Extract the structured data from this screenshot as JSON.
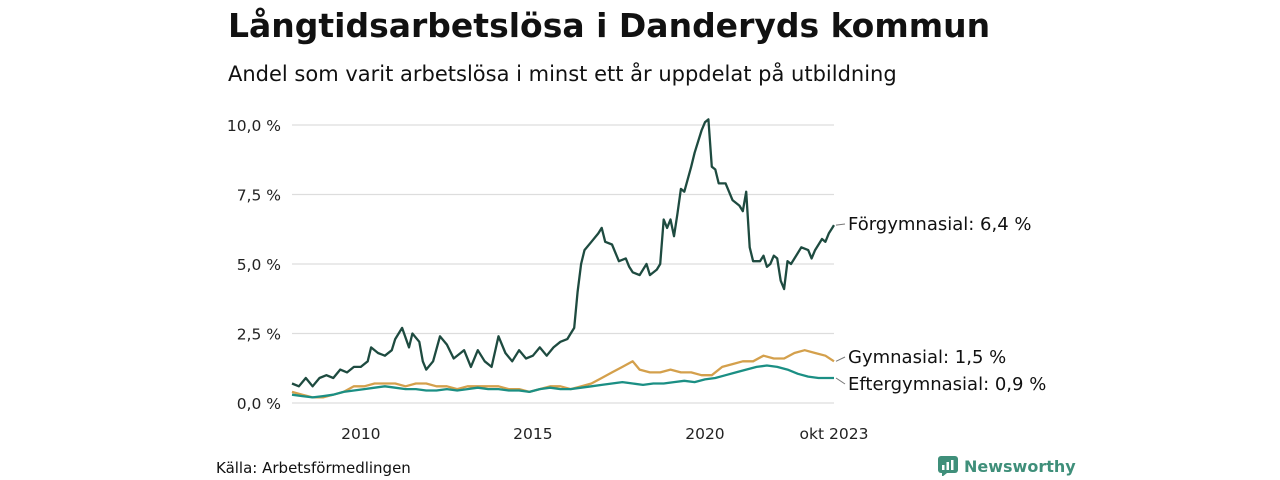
{
  "title": "Långtidsarbetslösa i Danderyds kommun",
  "subtitle": "Andel som varit arbetslösa i minst ett år uppdelat på utbildning",
  "source": "Källa: Arbetsförmedlingen",
  "brand": "Newsworthy",
  "colors": {
    "forgymnasial": "#1e4b40",
    "gymnasial": "#d4a04c",
    "eftergymnasial": "#1b8f84",
    "brand": "#3f8f7a",
    "grid": "#dddddd"
  },
  "chart_data": {
    "type": "line",
    "title": "Långtidsarbetslösa i Danderyds kommun",
    "subtitle": "Andel som varit arbetslösa i minst ett år uppdelat på utbildning",
    "x_range": [
      2008.0,
      2023.75
    ],
    "ylim": [
      0,
      10
    ],
    "y_ticks": [
      0,
      2.5,
      5.0,
      7.5,
      10.0
    ],
    "y_tick_labels": [
      "0,0 %",
      "2,5 %",
      "5,0 %",
      "7,5 %",
      "10,0 %"
    ],
    "x_ticks": [
      2010,
      2015,
      2020,
      2023.75
    ],
    "x_tick_labels": [
      "2010",
      "2015",
      "2020",
      "okt 2023"
    ],
    "series": [
      {
        "name": "Förgymnasial",
        "end_label": "Förgymnasial: 6,4 %",
        "color": "#1e4b40",
        "points": [
          [
            2008.0,
            0.7
          ],
          [
            2008.2,
            0.6
          ],
          [
            2008.4,
            0.9
          ],
          [
            2008.6,
            0.6
          ],
          [
            2008.8,
            0.9
          ],
          [
            2009.0,
            1.0
          ],
          [
            2009.2,
            0.9
          ],
          [
            2009.4,
            1.2
          ],
          [
            2009.6,
            1.1
          ],
          [
            2009.8,
            1.3
          ],
          [
            2010.0,
            1.3
          ],
          [
            2010.2,
            1.5
          ],
          [
            2010.3,
            2.0
          ],
          [
            2010.5,
            1.8
          ],
          [
            2010.7,
            1.7
          ],
          [
            2010.9,
            1.9
          ],
          [
            2011.0,
            2.3
          ],
          [
            2011.2,
            2.7
          ],
          [
            2011.4,
            2.0
          ],
          [
            2011.5,
            2.5
          ],
          [
            2011.7,
            2.2
          ],
          [
            2011.8,
            1.5
          ],
          [
            2011.9,
            1.2
          ],
          [
            2012.1,
            1.5
          ],
          [
            2012.3,
            2.4
          ],
          [
            2012.5,
            2.1
          ],
          [
            2012.7,
            1.6
          ],
          [
            2012.9,
            1.8
          ],
          [
            2013.0,
            1.9
          ],
          [
            2013.2,
            1.3
          ],
          [
            2013.4,
            1.9
          ],
          [
            2013.6,
            1.5
          ],
          [
            2013.8,
            1.3
          ],
          [
            2014.0,
            2.4
          ],
          [
            2014.2,
            1.8
          ],
          [
            2014.4,
            1.5
          ],
          [
            2014.6,
            1.9
          ],
          [
            2014.8,
            1.6
          ],
          [
            2015.0,
            1.7
          ],
          [
            2015.2,
            2.0
          ],
          [
            2015.4,
            1.7
          ],
          [
            2015.6,
            2.0
          ],
          [
            2015.8,
            2.2
          ],
          [
            2016.0,
            2.3
          ],
          [
            2016.1,
            2.5
          ],
          [
            2016.2,
            2.7
          ],
          [
            2016.3,
            4.0
          ],
          [
            2016.4,
            5.0
          ],
          [
            2016.5,
            5.5
          ],
          [
            2016.7,
            5.8
          ],
          [
            2016.9,
            6.1
          ],
          [
            2017.0,
            6.3
          ],
          [
            2017.1,
            5.8
          ],
          [
            2017.3,
            5.7
          ],
          [
            2017.5,
            5.1
          ],
          [
            2017.7,
            5.2
          ],
          [
            2017.8,
            4.9
          ],
          [
            2017.9,
            4.7
          ],
          [
            2018.1,
            4.6
          ],
          [
            2018.3,
            5.0
          ],
          [
            2018.4,
            4.6
          ],
          [
            2018.6,
            4.8
          ],
          [
            2018.7,
            5.0
          ],
          [
            2018.8,
            6.6
          ],
          [
            2018.9,
            6.3
          ],
          [
            2019.0,
            6.6
          ],
          [
            2019.1,
            6.0
          ],
          [
            2019.2,
            6.8
          ],
          [
            2019.3,
            7.7
          ],
          [
            2019.4,
            7.6
          ],
          [
            2019.6,
            8.5
          ],
          [
            2019.7,
            9.0
          ],
          [
            2019.9,
            9.8
          ],
          [
            2020.0,
            10.1
          ],
          [
            2020.1,
            10.2
          ],
          [
            2020.2,
            8.5
          ],
          [
            2020.3,
            8.4
          ],
          [
            2020.4,
            7.9
          ],
          [
            2020.6,
            7.9
          ],
          [
            2020.8,
            7.3
          ],
          [
            2021.0,
            7.1
          ],
          [
            2021.1,
            6.9
          ],
          [
            2021.2,
            7.6
          ],
          [
            2021.3,
            5.6
          ],
          [
            2021.4,
            5.1
          ],
          [
            2021.6,
            5.1
          ],
          [
            2021.7,
            5.3
          ],
          [
            2021.8,
            4.9
          ],
          [
            2021.9,
            5.0
          ],
          [
            2022.0,
            5.3
          ],
          [
            2022.1,
            5.2
          ],
          [
            2022.2,
            4.4
          ],
          [
            2022.3,
            4.1
          ],
          [
            2022.4,
            5.1
          ],
          [
            2022.5,
            5.0
          ],
          [
            2022.7,
            5.4
          ],
          [
            2022.8,
            5.6
          ],
          [
            2023.0,
            5.5
          ],
          [
            2023.1,
            5.2
          ],
          [
            2023.2,
            5.5
          ],
          [
            2023.4,
            5.9
          ],
          [
            2023.5,
            5.8
          ],
          [
            2023.6,
            6.1
          ],
          [
            2023.7,
            6.3
          ],
          [
            2023.75,
            6.4
          ]
        ]
      },
      {
        "name": "Gymnasial",
        "end_label": "Gymnasial: 1,5 %",
        "color": "#d4a04c",
        "points": [
          [
            2008.0,
            0.4
          ],
          [
            2008.3,
            0.3
          ],
          [
            2008.6,
            0.2
          ],
          [
            2008.9,
            0.2
          ],
          [
            2009.2,
            0.3
          ],
          [
            2009.5,
            0.4
          ],
          [
            2009.8,
            0.6
          ],
          [
            2010.1,
            0.6
          ],
          [
            2010.4,
            0.7
          ],
          [
            2010.7,
            0.7
          ],
          [
            2011.0,
            0.7
          ],
          [
            2011.3,
            0.6
          ],
          [
            2011.6,
            0.7
          ],
          [
            2011.9,
            0.7
          ],
          [
            2012.2,
            0.6
          ],
          [
            2012.5,
            0.6
          ],
          [
            2012.8,
            0.5
          ],
          [
            2013.1,
            0.6
          ],
          [
            2013.4,
            0.6
          ],
          [
            2013.7,
            0.6
          ],
          [
            2014.0,
            0.6
          ],
          [
            2014.3,
            0.5
          ],
          [
            2014.6,
            0.5
          ],
          [
            2014.9,
            0.4
          ],
          [
            2015.2,
            0.5
          ],
          [
            2015.5,
            0.6
          ],
          [
            2015.8,
            0.6
          ],
          [
            2016.1,
            0.5
          ],
          [
            2016.4,
            0.6
          ],
          [
            2016.7,
            0.7
          ],
          [
            2017.0,
            0.9
          ],
          [
            2017.3,
            1.1
          ],
          [
            2017.6,
            1.3
          ],
          [
            2017.9,
            1.5
          ],
          [
            2018.1,
            1.2
          ],
          [
            2018.4,
            1.1
          ],
          [
            2018.7,
            1.1
          ],
          [
            2019.0,
            1.2
          ],
          [
            2019.3,
            1.1
          ],
          [
            2019.6,
            1.1
          ],
          [
            2019.9,
            1.0
          ],
          [
            2020.2,
            1.0
          ],
          [
            2020.5,
            1.3
          ],
          [
            2020.8,
            1.4
          ],
          [
            2021.1,
            1.5
          ],
          [
            2021.4,
            1.5
          ],
          [
            2021.7,
            1.7
          ],
          [
            2022.0,
            1.6
          ],
          [
            2022.3,
            1.6
          ],
          [
            2022.6,
            1.8
          ],
          [
            2022.9,
            1.9
          ],
          [
            2023.2,
            1.8
          ],
          [
            2023.5,
            1.7
          ],
          [
            2023.75,
            1.5
          ]
        ]
      },
      {
        "name": "Eftergymnasial",
        "end_label": "Eftergymnasial: 0,9 %",
        "color": "#1b8f84",
        "points": [
          [
            2008.0,
            0.3
          ],
          [
            2008.3,
            0.25
          ],
          [
            2008.6,
            0.2
          ],
          [
            2008.9,
            0.25
          ],
          [
            2009.2,
            0.3
          ],
          [
            2009.5,
            0.4
          ],
          [
            2009.8,
            0.45
          ],
          [
            2010.1,
            0.5
          ],
          [
            2010.4,
            0.55
          ],
          [
            2010.7,
            0.6
          ],
          [
            2011.0,
            0.55
          ],
          [
            2011.3,
            0.5
          ],
          [
            2011.6,
            0.5
          ],
          [
            2011.9,
            0.45
          ],
          [
            2012.2,
            0.45
          ],
          [
            2012.5,
            0.5
          ],
          [
            2012.8,
            0.45
          ],
          [
            2013.1,
            0.5
          ],
          [
            2013.4,
            0.55
          ],
          [
            2013.7,
            0.5
          ],
          [
            2014.0,
            0.5
          ],
          [
            2014.3,
            0.45
          ],
          [
            2014.6,
            0.45
          ],
          [
            2014.9,
            0.4
          ],
          [
            2015.2,
            0.5
          ],
          [
            2015.5,
            0.55
          ],
          [
            2015.8,
            0.5
          ],
          [
            2016.1,
            0.5
          ],
          [
            2016.4,
            0.55
          ],
          [
            2016.7,
            0.6
          ],
          [
            2017.0,
            0.65
          ],
          [
            2017.3,
            0.7
          ],
          [
            2017.6,
            0.75
          ],
          [
            2017.9,
            0.7
          ],
          [
            2018.2,
            0.65
          ],
          [
            2018.5,
            0.7
          ],
          [
            2018.8,
            0.7
          ],
          [
            2019.1,
            0.75
          ],
          [
            2019.4,
            0.8
          ],
          [
            2019.7,
            0.75
          ],
          [
            2020.0,
            0.85
          ],
          [
            2020.3,
            0.9
          ],
          [
            2020.6,
            1.0
          ],
          [
            2020.9,
            1.1
          ],
          [
            2021.2,
            1.2
          ],
          [
            2021.5,
            1.3
          ],
          [
            2021.8,
            1.35
          ],
          [
            2022.1,
            1.3
          ],
          [
            2022.4,
            1.2
          ],
          [
            2022.7,
            1.05
          ],
          [
            2023.0,
            0.95
          ],
          [
            2023.3,
            0.9
          ],
          [
            2023.6,
            0.9
          ],
          [
            2023.75,
            0.9
          ]
        ]
      }
    ]
  }
}
